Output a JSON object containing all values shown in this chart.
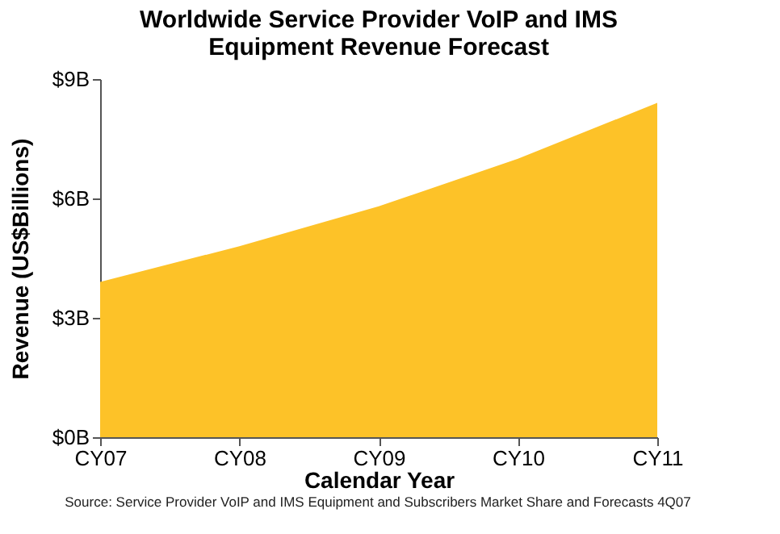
{
  "chart_data": {
    "type": "area",
    "title": [
      "Worldwide Service Provider VoIP and IMS",
      "Equipment Revenue Forecast"
    ],
    "xlabel": "Calendar Year",
    "ylabel": "Revenue (US$Billions)",
    "categories": [
      "CY07",
      "CY08",
      "CY09",
      "CY10",
      "CY11"
    ],
    "series": [
      {
        "color": "#fdc228",
        "values": [
          3.9,
          4.8,
          5.8,
          7.0,
          8.4
        ]
      }
    ],
    "ylim": [
      0,
      9
    ],
    "yticks": [
      {
        "value": 0,
        "label": "$0B"
      },
      {
        "value": 3,
        "label": "$3B"
      },
      {
        "value": 6,
        "label": "$6B"
      },
      {
        "value": 9,
        "label": "$9B"
      }
    ],
    "grid": false,
    "annotations": [
      "Source: Service Provider VoIP and IMS Equipment and Subscribers Market Share and Forecasts 4Q07"
    ]
  }
}
